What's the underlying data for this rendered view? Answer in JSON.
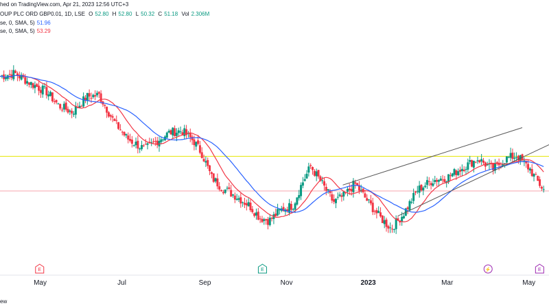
{
  "header": {
    "published": "hed on TradingView.com, Apr 21, 2023 12:56 UTC+3",
    "symbol": "OUP PLC ORD GBP0.01, 1D, LSE",
    "o_label": "O",
    "o_value": "52.80",
    "h_label": "H",
    "h_value": "52.80",
    "l_label": "L",
    "l_value": "50.32",
    "c_label": "C",
    "c_value": "51.18",
    "vol_label": "Vol",
    "vol_value": "2.306M",
    "ma1_label": "se, 0, SMA, 5)",
    "ma1_value": "51.96",
    "ma2_label": "se, 0, SMA, 5)",
    "ma2_value": "53.29"
  },
  "footer_text": "ew",
  "colors": {
    "up": "#089981",
    "down": "#f23645",
    "ma_fast": "#f23645",
    "ma_slow": "#2962ff",
    "resistance": "#e6e600",
    "price_line": "#f7a5ad",
    "trendline": "#555555"
  },
  "events": [
    {
      "label": "E",
      "month_index": 0,
      "kind": "earnings",
      "color": "#f23645"
    },
    {
      "label": "E",
      "month_index": 5,
      "kind": "earnings",
      "color": "#089981"
    },
    {
      "label": "⚡",
      "month_index": 11,
      "kind": "split",
      "color": "#9c27b0"
    },
    {
      "label": "E",
      "month_index": 12,
      "kind": "earnings",
      "color": "#9c27b0"
    }
  ],
  "chart_data": {
    "type": "candlestick",
    "x_tick_labels": [
      "May",
      "Jul",
      "Sep",
      "Nov",
      "2023",
      "Mar",
      "May"
    ],
    "resistance_level": 73.5,
    "last_price": 51.18,
    "y_range": [
      0,
      150
    ],
    "grid": false,
    "price_path": [
      [
        "2022-04-01",
        125
      ],
      [
        "2022-04-12",
        127
      ],
      [
        "2022-04-25",
        120
      ],
      [
        "2022-05-06",
        115
      ],
      [
        "2022-05-15",
        106
      ],
      [
        "2022-05-25",
        102
      ],
      [
        "2022-06-05",
        112
      ],
      [
        "2022-06-14",
        113
      ],
      [
        "2022-06-25",
        96
      ],
      [
        "2022-07-05",
        85
      ],
      [
        "2022-07-18",
        78
      ],
      [
        "2022-07-28",
        84
      ],
      [
        "2022-08-06",
        89
      ],
      [
        "2022-08-15",
        90
      ],
      [
        "2022-08-24",
        83
      ],
      [
        "2022-08-30",
        75
      ],
      [
        "2022-09-06",
        60
      ],
      [
        "2022-09-14",
        53
      ],
      [
        "2022-09-24",
        48
      ],
      [
        "2022-10-04",
        42
      ],
      [
        "2022-10-12",
        34
      ],
      [
        "2022-10-19",
        32
      ],
      [
        "2022-10-28",
        39
      ],
      [
        "2022-11-06",
        42
      ],
      [
        "2022-11-12",
        55
      ],
      [
        "2022-11-19",
        67
      ],
      [
        "2022-11-26",
        58
      ],
      [
        "2022-12-06",
        44
      ],
      [
        "2022-12-14",
        48
      ],
      [
        "2022-12-22",
        56
      ],
      [
        "2023-01-01",
        44
      ],
      [
        "2023-01-10",
        34
      ],
      [
        "2023-01-18",
        27
      ],
      [
        "2023-01-27",
        36
      ],
      [
        "2023-02-07",
        52
      ],
      [
        "2023-02-18",
        58
      ],
      [
        "2023-03-01",
        60
      ],
      [
        "2023-03-12",
        66
      ],
      [
        "2023-03-24",
        72
      ],
      [
        "2023-04-04",
        65
      ],
      [
        "2023-04-14",
        72
      ],
      [
        "2023-04-22",
        74
      ],
      [
        "2023-05-02",
        65
      ],
      [
        "2023-05-06",
        59
      ],
      [
        "2023-05-12",
        52
      ]
    ],
    "series": [
      {
        "name": "se, 0, SMA, 5)",
        "color": "#f23645",
        "last_value": 51.96
      },
      {
        "name": "se, 0, SMA, 5)",
        "color": "#2962ff",
        "last_value": 53.29
      }
    ],
    "trendlines": [
      {
        "from": [
          "2022-12-13",
          55
        ],
        "to": [
          "2023-04-26",
          92
        ]
      },
      {
        "from": [
          "2023-01-23",
          35
        ],
        "to": [
          "2023-05-16",
          81
        ]
      }
    ]
  }
}
